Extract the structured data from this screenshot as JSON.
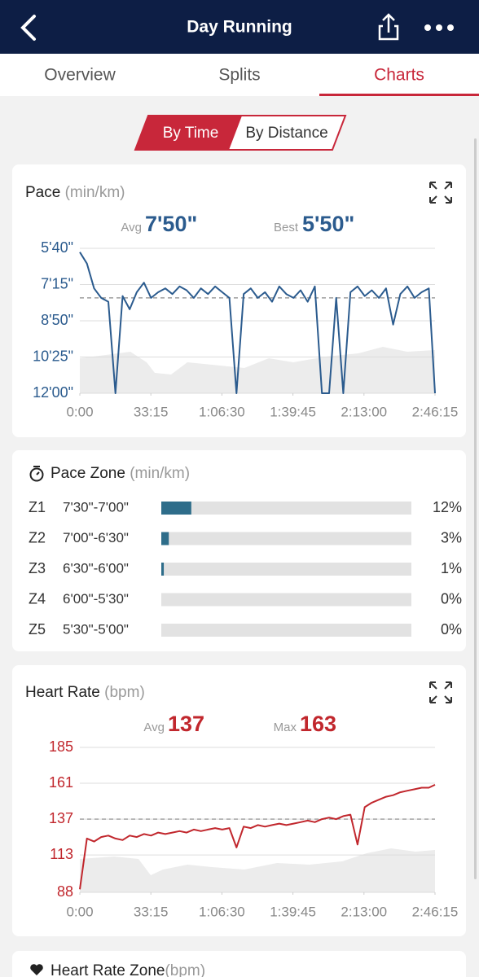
{
  "header": {
    "title": "Day Running"
  },
  "tabs": {
    "items": [
      "Overview",
      "Splits",
      "Charts"
    ],
    "active": 2
  },
  "toggle": {
    "items": [
      "By Time",
      "By Distance"
    ],
    "active": 0
  },
  "pace_chart": {
    "type": "line",
    "title": "Pace",
    "unit": "(min/km)",
    "color": "#2b5b8e",
    "avg_label": "Avg",
    "avg": {
      "value": 470,
      "label": "7'50\""
    },
    "best_label": "Best",
    "best": "5'50\"",
    "x": [
      0,
      200,
      400,
      600,
      800,
      1000,
      1200,
      1400,
      1600,
      1800,
      2000,
      2200,
      2400,
      2600,
      2800,
      3000,
      3200,
      3400,
      3600,
      3800,
      4000,
      4200,
      4400,
      4600,
      4800,
      5000,
      5200,
      5400,
      5600,
      5800,
      6000,
      6200,
      6400,
      6600,
      6800,
      7000,
      7200,
      7400,
      7600,
      7800,
      8000,
      8200,
      8400,
      8600,
      8800,
      9000,
      9200,
      9400,
      9600,
      9800,
      9975
    ],
    "values": [
      350,
      380,
      445,
      470,
      480,
      720,
      465,
      500,
      455,
      430,
      470,
      455,
      445,
      460,
      440,
      450,
      470,
      445,
      460,
      440,
      455,
      470,
      720,
      460,
      445,
      470,
      455,
      480,
      440,
      460,
      470,
      450,
      480,
      440,
      720,
      720,
      470,
      720,
      455,
      440,
      465,
      450,
      470,
      445,
      540,
      460,
      440,
      470,
      455,
      445,
      720
    ],
    "xlim": [
      0,
      9975
    ],
    "ylim": [
      340,
      720
    ],
    "y_inverted": true,
    "xticks": [
      {
        "value": 0,
        "label": "0:00"
      },
      {
        "value": 1995,
        "label": "33:15"
      },
      {
        "value": 3990,
        "label": "1:06:30"
      },
      {
        "value": 5985,
        "label": "1:39:45"
      },
      {
        "value": 7980,
        "label": "2:13:00"
      },
      {
        "value": 9975,
        "label": "2:46:15"
      }
    ],
    "yticks": [
      {
        "value": 340,
        "label": "5'40\""
      },
      {
        "value": 435,
        "label": "7'15\""
      },
      {
        "value": 530,
        "label": "8'50\""
      },
      {
        "value": 625,
        "label": "10'25\""
      },
      {
        "value": 720,
        "label": "12'00\""
      }
    ]
  },
  "pace_zone": {
    "title": "Pace Zone",
    "unit": "(min/km)",
    "color": "#2e6d8a",
    "names": [
      "Z1",
      "Z2",
      "Z3",
      "Z4",
      "Z5"
    ],
    "ranges": [
      "7'30\"-7'00\"",
      "7'00\"-6'30\"",
      "6'30\"-6'00\"",
      "6'00\"-5'30\"",
      "5'30\"-5'00\""
    ],
    "values": [
      12,
      3,
      1,
      0,
      0
    ],
    "value_labels": [
      "12%",
      "3%",
      "1%",
      "0%",
      "0%"
    ],
    "xlim": [
      0,
      100
    ]
  },
  "hr_chart": {
    "type": "line",
    "title": "Heart Rate",
    "unit": "(bpm)",
    "color": "#c1272d",
    "avg_label": "Avg",
    "avg": 137,
    "max_label": "Max",
    "max": 163,
    "x": [
      0,
      200,
      400,
      600,
      800,
      1000,
      1200,
      1400,
      1600,
      1800,
      2000,
      2200,
      2400,
      2600,
      2800,
      3000,
      3200,
      3400,
      3600,
      3800,
      4000,
      4200,
      4400,
      4600,
      4800,
      5000,
      5200,
      5400,
      5600,
      5800,
      6000,
      6200,
      6400,
      6600,
      6800,
      7000,
      7200,
      7400,
      7600,
      7800,
      8000,
      8200,
      8400,
      8600,
      8800,
      9000,
      9200,
      9400,
      9600,
      9800,
      9975
    ],
    "values": [
      90,
      124,
      122,
      125,
      126,
      124,
      123,
      126,
      125,
      127,
      126,
      128,
      127,
      128,
      129,
      128,
      130,
      129,
      130,
      131,
      130,
      131,
      118,
      132,
      131,
      133,
      132,
      133,
      134,
      133,
      134,
      135,
      136,
      135,
      137,
      138,
      137,
      139,
      140,
      120,
      145,
      148,
      150,
      152,
      153,
      155,
      156,
      157,
      158,
      158,
      160
    ],
    "xlim": [
      0,
      9975
    ],
    "ylim": [
      88,
      185
    ],
    "xticks": [
      {
        "value": 0,
        "label": "0:00"
      },
      {
        "value": 1995,
        "label": "33:15"
      },
      {
        "value": 3990,
        "label": "1:06:30"
      },
      {
        "value": 5985,
        "label": "1:39:45"
      },
      {
        "value": 7980,
        "label": "2:13:00"
      },
      {
        "value": 9975,
        "label": "2:46:15"
      }
    ],
    "yticks": [
      185,
      161,
      137,
      113,
      88
    ]
  },
  "hr_zone": {
    "title": "Heart Rate Zone",
    "unit": "(bpm)"
  }
}
